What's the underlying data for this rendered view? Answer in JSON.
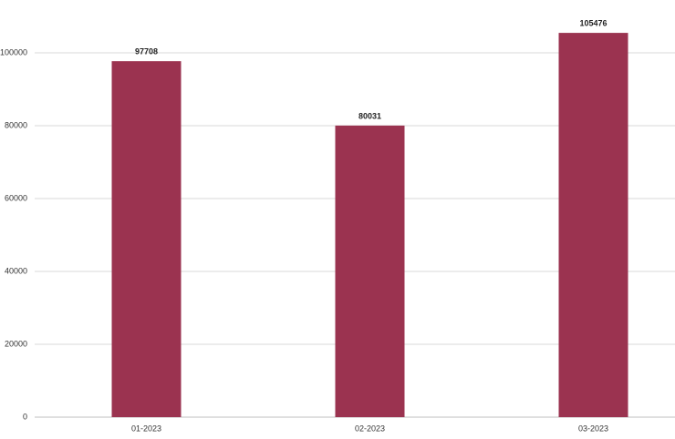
{
  "chart_data": {
    "type": "bar",
    "categories": [
      "01-2023",
      "02-2023",
      "03-2023"
    ],
    "values": [
      97708,
      80031,
      105476
    ],
    "color": "#9b3350",
    "ylim": [
      0,
      110000
    ],
    "yticks": [
      0,
      20000,
      40000,
      60000,
      80000,
      100000
    ],
    "grid": true
  }
}
